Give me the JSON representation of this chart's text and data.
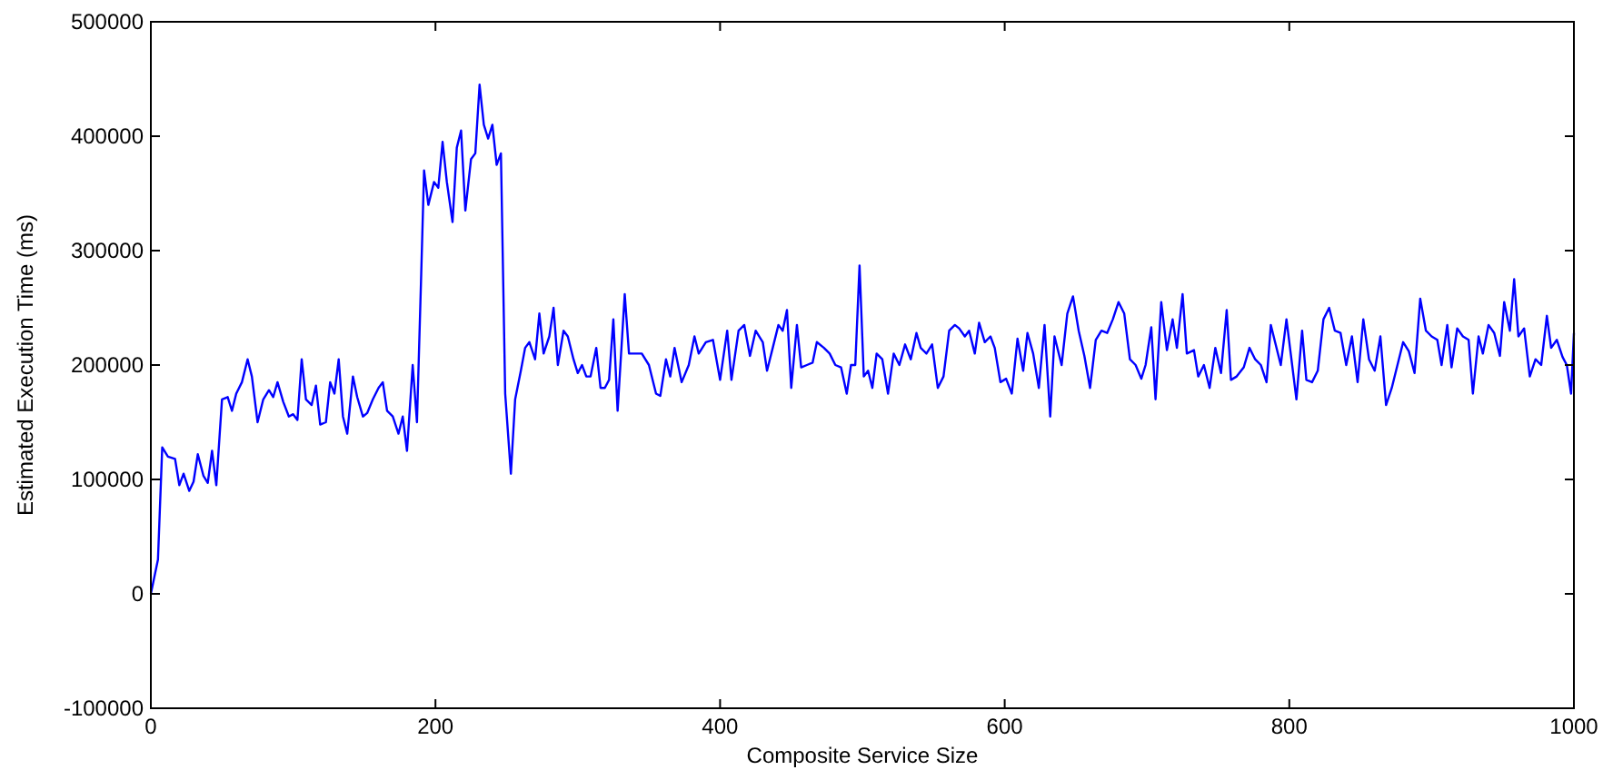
{
  "chart_data": {
    "type": "line",
    "xlabel": "Composite Service Size",
    "ylabel": "Estimated Execution Time (ms)",
    "xlim": [
      0,
      1000
    ],
    "ylim": [
      -100000,
      500000
    ],
    "xticks": [
      0,
      200,
      400,
      600,
      800,
      1000
    ],
    "yticks": [
      -100000,
      0,
      100000,
      200000,
      300000,
      400000,
      500000
    ],
    "grid": false,
    "x": [
      0,
      5,
      8,
      12,
      17,
      20,
      23,
      27,
      30,
      33,
      37,
      40,
      43,
      46,
      50,
      54,
      57,
      60,
      64,
      68,
      71,
      75,
      79,
      83,
      86,
      89,
      93,
      97,
      100,
      103,
      106,
      109,
      113,
      116,
      119,
      123,
      126,
      129,
      132,
      135,
      138,
      142,
      145,
      149,
      152,
      156,
      160,
      163,
      166,
      170,
      174,
      177,
      180,
      184,
      187,
      190,
      192,
      195,
      199,
      202,
      205,
      208,
      212,
      215,
      218,
      221,
      225,
      228,
      231,
      234,
      237,
      240,
      243,
      246,
      249,
      253,
      256,
      260,
      263,
      266,
      270,
      273,
      276,
      280,
      283,
      286,
      290,
      293,
      297,
      300,
      303,
      306,
      309,
      313,
      316,
      319,
      322,
      325,
      328,
      333,
      336,
      340,
      345,
      350,
      355,
      358,
      362,
      365,
      368,
      373,
      378,
      382,
      385,
      390,
      395,
      400,
      405,
      408,
      413,
      417,
      421,
      425,
      430,
      433,
      437,
      441,
      444,
      447,
      450,
      454,
      457,
      461,
      465,
      468,
      473,
      477,
      481,
      485,
      489,
      492,
      495,
      498,
      501,
      504,
      507,
      510,
      514,
      518,
      522,
      526,
      530,
      534,
      538,
      541,
      545,
      549,
      553,
      557,
      561,
      565,
      568,
      572,
      575,
      579,
      582,
      586,
      590,
      593,
      597,
      601,
      605,
      609,
      613,
      616,
      620,
      624,
      628,
      632,
      635,
      640,
      644,
      648,
      652,
      656,
      660,
      664,
      668,
      672,
      676,
      680,
      684,
      688,
      692,
      696,
      699,
      703,
      706,
      710,
      714,
      718,
      721,
      725,
      728,
      733,
      736,
      740,
      744,
      748,
      752,
      756,
      759,
      763,
      768,
      772,
      776,
      780,
      784,
      787,
      790,
      794,
      798,
      801,
      805,
      809,
      812,
      816,
      820,
      824,
      828,
      832,
      836,
      840,
      844,
      848,
      852,
      856,
      860,
      864,
      868,
      872,
      876,
      880,
      884,
      888,
      892,
      896,
      900,
      904,
      907,
      911,
      914,
      918,
      922,
      926,
      929,
      933,
      936,
      940,
      944,
      948,
      951,
      955,
      958,
      961,
      965,
      969,
      973,
      977,
      981,
      984,
      988,
      992,
      995,
      998,
      1000
    ],
    "series": [
      {
        "color": "#0000ff",
        "values": [
          0,
          30000,
          128000,
          120000,
          118000,
          95000,
          105000,
          90000,
          98000,
          122000,
          103000,
          97000,
          125000,
          95000,
          170000,
          172000,
          160000,
          175000,
          185000,
          205000,
          190000,
          150000,
          170000,
          178000,
          172000,
          185000,
          168000,
          155000,
          157000,
          152000,
          205000,
          170000,
          165000,
          182000,
          148000,
          150000,
          185000,
          175000,
          205000,
          155000,
          140000,
          190000,
          172000,
          155000,
          158000,
          170000,
          180000,
          185000,
          160000,
          155000,
          140000,
          155000,
          125000,
          200000,
          150000,
          280000,
          370000,
          340000,
          360000,
          355000,
          395000,
          360000,
          325000,
          390000,
          405000,
          335000,
          380000,
          385000,
          445000,
          410000,
          398000,
          410000,
          375000,
          385000,
          175000,
          105000,
          170000,
          195000,
          215000,
          220000,
          205000,
          245000,
          210000,
          225000,
          250000,
          200000,
          230000,
          225000,
          205000,
          193000,
          200000,
          190000,
          190000,
          215000,
          180000,
          180000,
          187000,
          240000,
          160000,
          262000,
          210000,
          210000,
          210000,
          200000,
          175000,
          173000,
          205000,
          190000,
          215000,
          185000,
          200000,
          225000,
          210000,
          220000,
          222000,
          187000,
          230000,
          187000,
          230000,
          235000,
          208000,
          230000,
          220000,
          195000,
          215000,
          235000,
          230000,
          248000,
          180000,
          235000,
          198000,
          200000,
          202000,
          220000,
          215000,
          210000,
          200000,
          198000,
          175000,
          200000,
          200000,
          287000,
          190000,
          195000,
          180000,
          210000,
          205000,
          175000,
          210000,
          200000,
          218000,
          205000,
          228000,
          215000,
          210000,
          218000,
          180000,
          190000,
          230000,
          235000,
          232000,
          225000,
          230000,
          210000,
          237000,
          220000,
          225000,
          215000,
          185000,
          188000,
          175000,
          223000,
          195000,
          228000,
          210000,
          180000,
          235000,
          155000,
          225000,
          200000,
          245000,
          260000,
          230000,
          208000,
          180000,
          222000,
          230000,
          228000,
          240000,
          255000,
          245000,
          205000,
          200000,
          188000,
          200000,
          233000,
          170000,
          255000,
          213000,
          240000,
          215000,
          262000,
          210000,
          213000,
          190000,
          200000,
          180000,
          215000,
          193000,
          248000,
          187000,
          190000,
          198000,
          215000,
          205000,
          200000,
          185000,
          235000,
          220000,
          200000,
          240000,
          210000,
          170000,
          230000,
          187000,
          185000,
          195000,
          240000,
          250000,
          230000,
          228000,
          200000,
          225000,
          185000,
          240000,
          205000,
          195000,
          225000,
          165000,
          180000,
          200000,
          220000,
          212000,
          193000,
          258000,
          230000,
          225000,
          222000,
          200000,
          235000,
          198000,
          232000,
          225000,
          222000,
          175000,
          225000,
          210000,
          235000,
          228000,
          208000,
          255000,
          230000,
          275000,
          225000,
          232000,
          190000,
          205000,
          200000,
          243000,
          215000,
          222000,
          207000,
          200000,
          175000,
          228000
        ]
      }
    ]
  }
}
